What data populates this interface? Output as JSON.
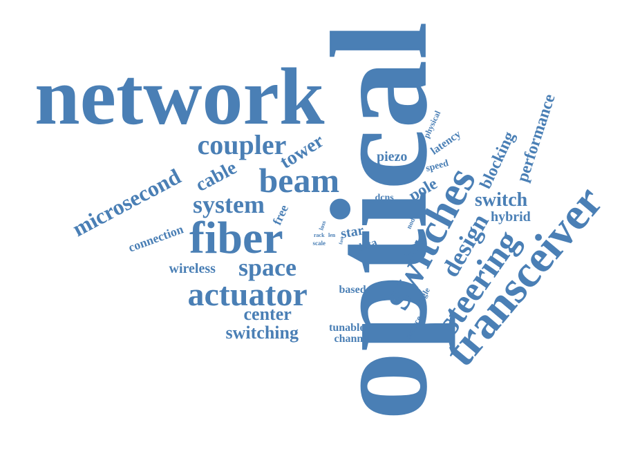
{
  "theme": {
    "word_color": "#4a7fb5",
    "background": "#ffffff"
  },
  "words": {
    "optical": "optical",
    "network": "network",
    "transceiver": "transceiver",
    "switches": "switches",
    "fiber": "fiber",
    "actuator": "actuator",
    "steering": "steering",
    "beam": "beam",
    "space": "space",
    "design": "design",
    "coupler": "coupler",
    "system": "system",
    "microsecond": "microsecond",
    "switching": "switching",
    "center": "center",
    "switch": "switch",
    "tower": "tower",
    "cable": "cable",
    "performance": "performance",
    "blocking": "blocking",
    "pole": "pole",
    "piezo": "piezo",
    "wireless": "wireless",
    "connection": "connection",
    "hybrid": "hybrid",
    "latency": "latency",
    "star": "star",
    "tunable": "tunable",
    "channel": "channel",
    "based": "based",
    "data": "data",
    "free": "free",
    "speed": "speed",
    "physical": "physical",
    "dcns": "dcns",
    "source": "source",
    "single": "single",
    "node": "node",
    "loss": "loss",
    "rack": "rack",
    "len": "len",
    "scale": "scale",
    "fast": "fast"
  }
}
